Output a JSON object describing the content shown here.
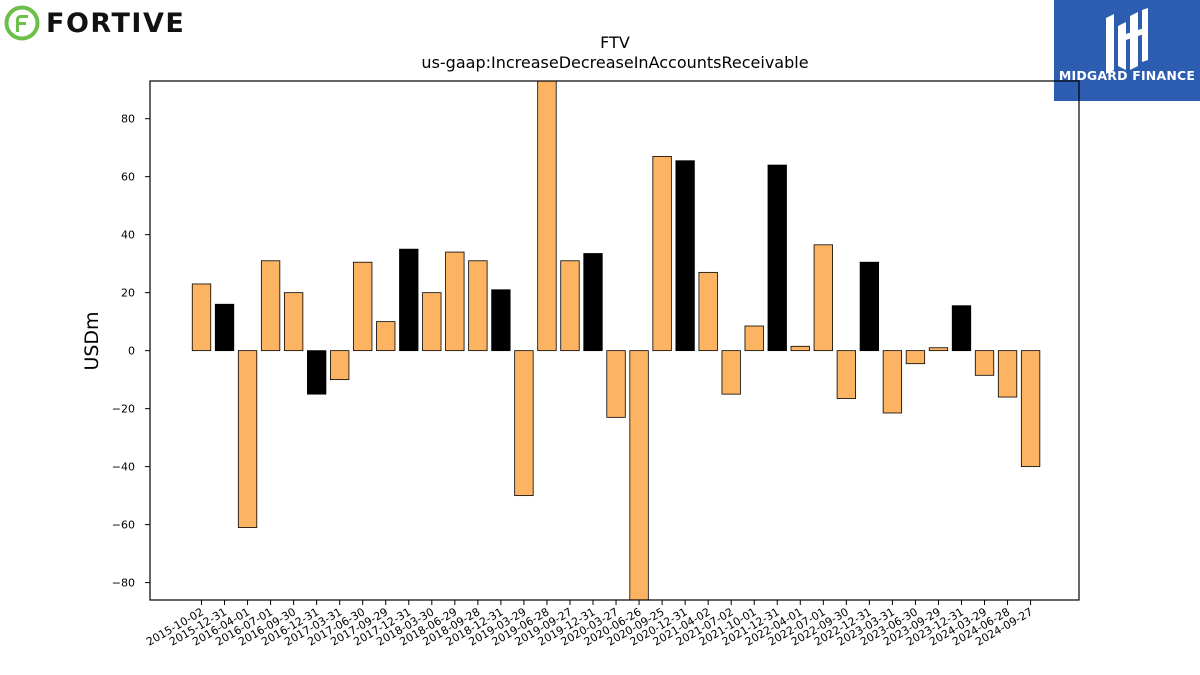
{
  "logos": {
    "left_text": "FORTIVE",
    "left_color": "#6cc04a",
    "right_text": "MIDGARD FINANCE",
    "right_color": "#2c5db0"
  },
  "chart_data": {
    "type": "bar",
    "title": "FTV",
    "subtitle": "us-gaap:IncreaseDecreaseInAccountsReceivable",
    "xlabel": "",
    "ylabel": "USDm",
    "ylim": [
      -86,
      93
    ],
    "yticks": [
      -80,
      -60,
      -40,
      -20,
      0,
      20,
      40,
      60,
      80
    ],
    "grid": false,
    "colors": {
      "orange": "#fdb462",
      "black": "#000000",
      "edge": "#000000"
    },
    "categories": [
      "2015-10-02",
      "2015-12-31",
      "2016-04-01",
      "2016-07-01",
      "2016-09-30",
      "2016-12-31",
      "2017-03-31",
      "2017-06-30",
      "2017-09-29",
      "2017-12-31",
      "2018-03-30",
      "2018-06-29",
      "2018-09-28",
      "2018-12-31",
      "2019-03-29",
      "2019-06-28",
      "2019-09-27",
      "2019-12-31",
      "2020-03-27",
      "2020-06-26",
      "2020-09-25",
      "2020-12-31",
      "2021-04-02",
      "2021-07-02",
      "2021-10-01",
      "2021-12-31",
      "2022-04-01",
      "2022-07-01",
      "2022-09-30",
      "2022-12-31",
      "2023-03-31",
      "2023-06-30",
      "2023-09-29",
      "2023-12-31",
      "2024-03-29",
      "2024-06-28",
      "2024-09-27"
    ],
    "values": [
      23,
      16,
      -61,
      31,
      20,
      -15,
      -10,
      30.5,
      10,
      35,
      20,
      34,
      31,
      21,
      -50,
      93,
      31,
      33.5,
      -23,
      -86,
      67,
      65.5,
      27,
      -15,
      8.5,
      64,
      1.5,
      36.5,
      -16.5,
      30.5,
      -21.5,
      -4.5,
      1,
      15.5,
      -8.5,
      -16,
      -40
    ],
    "bar_colors": [
      "orange",
      "black",
      "orange",
      "orange",
      "orange",
      "black",
      "orange",
      "orange",
      "orange",
      "black",
      "orange",
      "orange",
      "orange",
      "black",
      "orange",
      "orange",
      "orange",
      "black",
      "orange",
      "orange",
      "orange",
      "black",
      "orange",
      "orange",
      "orange",
      "black",
      "orange",
      "orange",
      "orange",
      "black",
      "orange",
      "orange",
      "orange",
      "black",
      "orange",
      "orange",
      "orange"
    ]
  }
}
